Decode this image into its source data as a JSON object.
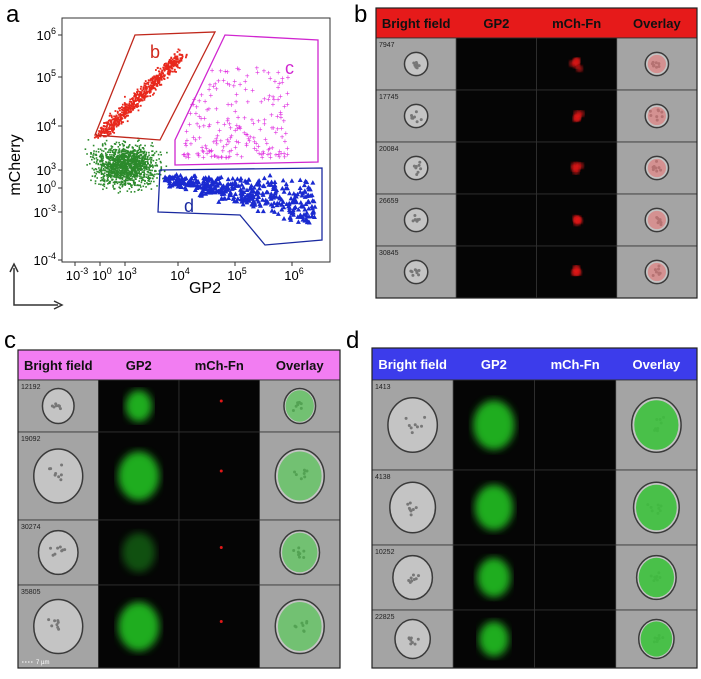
{
  "panels": {
    "a": {
      "label": "a",
      "y_axis_label": "mCherry",
      "x_axis_label": "GP2",
      "xticks": [
        {
          "base": "10",
          "exp": "-3"
        },
        {
          "base": "10",
          "exp": "0"
        },
        {
          "base": "10",
          "exp": "3"
        },
        {
          "base": "10",
          "exp": "4"
        },
        {
          "base": "10",
          "exp": "5"
        },
        {
          "base": "10",
          "exp": "6"
        }
      ],
      "yticks": [
        {
          "base": "10",
          "exp": "6"
        },
        {
          "base": "10",
          "exp": "5"
        },
        {
          "base": "10",
          "exp": "4"
        },
        {
          "base": "10",
          "exp": "3"
        },
        {
          "base": "10",
          "exp": "0"
        },
        {
          "base": "10",
          "exp": "-3"
        },
        {
          "base": "10",
          "exp": "-4"
        }
      ],
      "gates": [
        "b",
        "c",
        "d"
      ]
    },
    "b": {
      "label": "b",
      "headers": [
        "Bright field",
        "GP2",
        "mCh-Fn",
        "Overlay"
      ],
      "rows": [
        "7947",
        "17745",
        "20084",
        "26659",
        "30845"
      ]
    },
    "c": {
      "label": "c",
      "headers": [
        "Bright field",
        "GP2",
        "mCh-Fn",
        "Overlay"
      ],
      "rows": [
        "12192",
        "19092",
        "30274",
        "35805"
      ],
      "scale_bar": "7 µm"
    },
    "d": {
      "label": "d",
      "headers": [
        "Bright field",
        "GP2",
        "mCh-Fn",
        "Overlay"
      ],
      "rows": [
        "1413",
        "4138",
        "10252",
        "22825"
      ]
    }
  }
}
